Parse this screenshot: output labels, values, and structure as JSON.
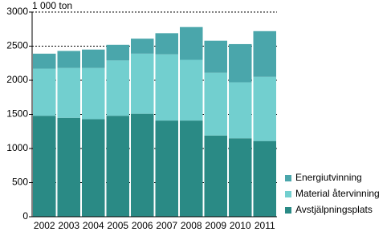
{
  "chart_data": {
    "type": "stacked-bar",
    "unit_label": "1 000 ton",
    "categories": [
      "2002",
      "2003",
      "2004",
      "2005",
      "2006",
      "2007",
      "2008",
      "2009",
      "2010",
      "2011"
    ],
    "series": [
      {
        "name": "Avstjälpningsplats",
        "color": "#2a8a85",
        "values": [
          1480,
          1450,
          1430,
          1480,
          1510,
          1410,
          1410,
          1190,
          1150,
          1110
        ]
      },
      {
        "name": "Material återvinning",
        "color": "#72cfcf",
        "values": [
          690,
          730,
          750,
          810,
          880,
          970,
          890,
          920,
          820,
          940
        ]
      },
      {
        "name": "Energiutvinning",
        "color": "#4aa6ab",
        "values": [
          220,
          250,
          270,
          230,
          220,
          310,
          480,
          470,
          560,
          670
        ]
      }
    ],
    "ylim": [
      0,
      3000
    ],
    "yticks": [
      0,
      500,
      1000,
      1500,
      2000,
      2500,
      3000
    ],
    "grid": true,
    "legend": "right"
  }
}
